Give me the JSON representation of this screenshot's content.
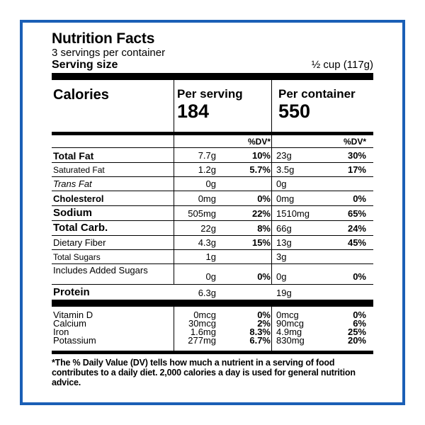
{
  "title": "Nutrition Facts",
  "servings_per_container": "3 servings per container",
  "serving_size_label": "Serving size",
  "serving_size_value": "½ cup (117g)",
  "calories_label": "Calories",
  "per_serving_label": "Per serving",
  "per_container_label": "Per container",
  "calories_per_serving": "184",
  "calories_per_container": "550",
  "dv_header": "%DV*",
  "nutrients": [
    {
      "name": "Total Fat",
      "serving": "7.7g",
      "serving_dv": "10%",
      "container": "23g",
      "container_dv": "30%"
    },
    {
      "name": "Saturated Fat",
      "serving": "1.2g",
      "serving_dv": "5.7%",
      "container": "3.5g",
      "container_dv": "17%"
    },
    {
      "name": "Trans Fat",
      "serving": "0g",
      "serving_dv": "",
      "container": "0g",
      "container_dv": ""
    },
    {
      "name": "Cholesterol",
      "serving": "0mg",
      "serving_dv": "0%",
      "container": "0mg",
      "container_dv": "0%"
    },
    {
      "name": "Sodium",
      "serving": "505mg",
      "serving_dv": "22%",
      "container": "1510mg",
      "container_dv": "65%"
    },
    {
      "name": "Total Carb.",
      "serving": "22g",
      "serving_dv": "8%",
      "container": "66g",
      "container_dv": "24%"
    },
    {
      "name": "Dietary Fiber",
      "serving": "4.3g",
      "serving_dv": "15%",
      "container": "13g",
      "container_dv": "45%"
    },
    {
      "name": "Total Sugars",
      "serving": "1g",
      "serving_dv": "",
      "container": "3g",
      "container_dv": ""
    },
    {
      "name": "Includes Added Sugars",
      "serving": "0g",
      "serving_dv": "0%",
      "container": "0g",
      "container_dv": "0%"
    },
    {
      "name": "Protein",
      "serving": "6.3g",
      "serving_dv": "",
      "container": "19g",
      "container_dv": ""
    }
  ],
  "vitamins": [
    {
      "name": "Vitamin D",
      "serving": "0mcg",
      "serving_dv": "0%",
      "container": "0mcg",
      "container_dv": "0%"
    },
    {
      "name": "Calcium",
      "serving": "30mcg",
      "serving_dv": "2%",
      "container": "90mcg",
      "container_dv": "6%"
    },
    {
      "name": "Iron",
      "serving": "1.6mg",
      "serving_dv": "8.3%",
      "container": "4.9mg",
      "container_dv": "25%"
    },
    {
      "name": "Potassium",
      "serving": "277mg",
      "serving_dv": "6.7%",
      "container": "830mg",
      "container_dv": "20%"
    }
  ],
  "footnote": "*The % Daily Value (DV) tells how much a nutrient in a serving of food contributes to a daily diet. 2,000 calories a day is used for general nutrition advice.",
  "colors": {
    "border": "#1b5fb6"
  }
}
